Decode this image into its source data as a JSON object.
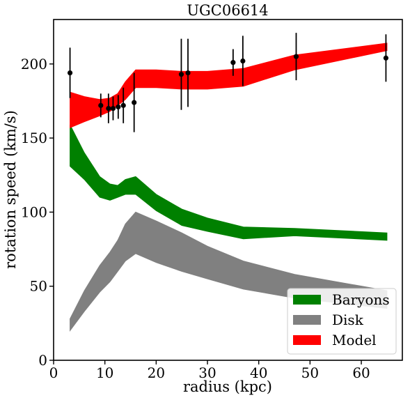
{
  "chart_data": {
    "type": "area",
    "title": "UGC06614",
    "xlabel": "radius (kpc)",
    "ylabel": "rotation speed (km/s)",
    "xlim": [
      0,
      68
    ],
    "ylim": [
      0,
      230
    ],
    "x_ticks": [
      0,
      10,
      20,
      30,
      40,
      50,
      60
    ],
    "y_ticks": [
      0,
      50,
      100,
      150,
      200
    ],
    "grid": false,
    "legend_position": "lower-right",
    "bands": [
      {
        "name": "Disk",
        "color": "#808080",
        "x": [
          3.2,
          6,
          9,
          11,
          12.5,
          14,
          16,
          20,
          25,
          30,
          37,
          47,
          65
        ],
        "lower": [
          20,
          33,
          46,
          53,
          60,
          67,
          72,
          66,
          60,
          55,
          48,
          42,
          35
        ],
        "upper": [
          28,
          47,
          64,
          73,
          81,
          92,
          100,
          94,
          86,
          77,
          67,
          58,
          47
        ]
      },
      {
        "name": "Baryons",
        "color": "#008000",
        "x": [
          3.2,
          6,
          9,
          11,
          12.5,
          14,
          16,
          20,
          25,
          30,
          37,
          47,
          65
        ],
        "lower": [
          131,
          122,
          110,
          108,
          110,
          112,
          112,
          101,
          91,
          87,
          82,
          84,
          81
        ],
        "upper": [
          159,
          140,
          124,
          119,
          118,
          122,
          124,
          112,
          102,
          96,
          90,
          89,
          86
        ]
      },
      {
        "name": "Model",
        "color": "#ff0000",
        "x": [
          3.2,
          6,
          9,
          11,
          12.5,
          14,
          16,
          20,
          25,
          30,
          37,
          47,
          65
        ],
        "lower": [
          157,
          161,
          165,
          168,
          172,
          176,
          184,
          184,
          183,
          183,
          185,
          196,
          209
        ],
        "upper": [
          181,
          178,
          176,
          177,
          180,
          188,
          196,
          196,
          195,
          195,
          197,
          206,
          214
        ]
      }
    ],
    "observations": {
      "x": [
        3.2,
        9.2,
        10.7,
        11.6,
        12.6,
        13.6,
        15.7,
        24.9,
        26.2,
        35,
        36.9,
        47.3,
        64.8
      ],
      "y": [
        194,
        172,
        170,
        170,
        171,
        172,
        174,
        193,
        194,
        201,
        202,
        205,
        204
      ],
      "err": [
        17,
        8,
        10,
        8,
        8,
        12,
        20,
        24,
        23,
        9,
        17,
        16,
        16
      ]
    },
    "legend": [
      {
        "label": "Baryons",
        "color": "#008000"
      },
      {
        "label": "Disk",
        "color": "#808080"
      },
      {
        "label": "Model",
        "color": "#ff0000"
      }
    ]
  }
}
